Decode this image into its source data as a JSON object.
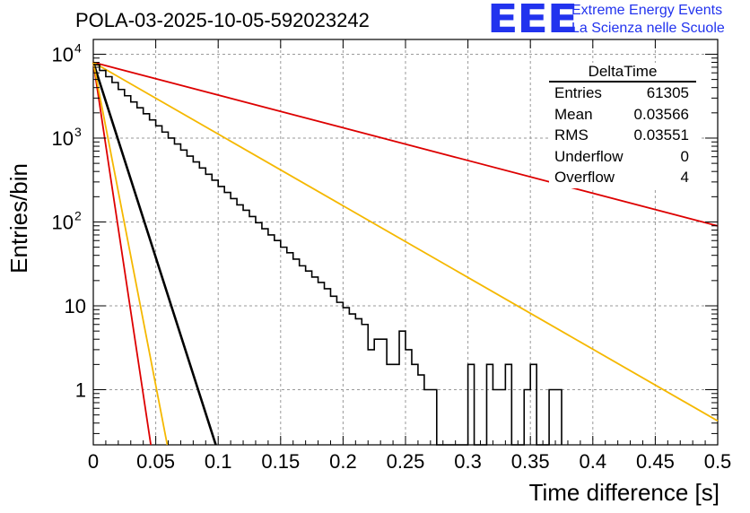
{
  "chart_data": {
    "type": "histogram",
    "title": "POLA-03-2025-10-05-592023242",
    "xlabel": "Time difference [s]",
    "ylabel": "Entries/bin",
    "xlim": [
      0,
      0.5
    ],
    "ylim_log": [
      0.22,
      15000
    ],
    "x_ticks": [
      "0",
      "0.05",
      "0.1",
      "0.15",
      "0.2",
      "0.25",
      "0.3",
      "0.35",
      "0.4",
      "0.45",
      "0.5"
    ],
    "y_ticks": [
      {
        "value": 1,
        "label": "1"
      },
      {
        "value": 10,
        "label": "10"
      },
      {
        "value": 100,
        "label": "10",
        "exp": "2"
      },
      {
        "value": 1000,
        "label": "10",
        "exp": "3"
      },
      {
        "value": 10000,
        "label": "10",
        "exp": "4"
      }
    ],
    "grid": true,
    "histogram": {
      "bin_width": 0.005,
      "counts": [
        7500,
        6400,
        5400,
        4600,
        3800,
        3200,
        2700,
        2300,
        1950,
        1650,
        1400,
        1180,
        1000,
        850,
        720,
        610,
        520,
        440,
        370,
        315,
        265,
        225,
        190,
        160,
        138,
        116,
        98,
        83,
        70,
        60,
        50,
        43,
        36,
        30,
        26,
        22,
        19,
        16,
        13,
        11,
        9.5,
        8,
        7,
        6,
        3,
        4,
        4,
        2,
        2,
        5,
        3,
        2,
        1.5,
        1,
        1,
        0.2,
        0.2,
        0.2,
        0.2,
        0.2,
        2,
        0.2,
        0.2,
        2,
        1,
        1,
        2,
        0.2,
        0.2,
        1,
        2,
        0.2,
        0.2,
        1,
        1
      ]
    },
    "fits": [
      {
        "name": "fit",
        "color": "#000000",
        "y0": 8000,
        "slope_per_s": -46.5,
        "xmax": 0.38
      },
      {
        "name": "upper-bound-red",
        "color": "#dd0000",
        "y0": 8000,
        "slope_per_s": -3.9,
        "xmax": 0.5
      },
      {
        "name": "upper-bound-yellow",
        "color": "#f5b800",
        "y0": 8000,
        "slope_per_s": -8.55,
        "xmax": 0.5
      },
      {
        "name": "steep-red",
        "color": "#dd0000",
        "y0": 8000,
        "slope_per_s": -99,
        "xmax": 0.2
      },
      {
        "name": "steep-yellow",
        "color": "#f5b800",
        "y0": 8000,
        "slope_per_s": -77,
        "xmax": 0.2
      }
    ]
  },
  "stats_box": {
    "name": "DeltaTime",
    "rows": [
      {
        "label": "Entries",
        "value": "61305"
      },
      {
        "label": "Mean",
        "value": "0.03566"
      },
      {
        "label": "RMS",
        "value": "0.03551"
      },
      {
        "label": "Underflow",
        "value": "0"
      },
      {
        "label": "Overflow",
        "value": "4"
      }
    ]
  },
  "logo": {
    "letters": "EEE",
    "line1": "Extreme Energy Events",
    "line2": "La Scienza nelle Scuole",
    "color": "#2233ee"
  }
}
